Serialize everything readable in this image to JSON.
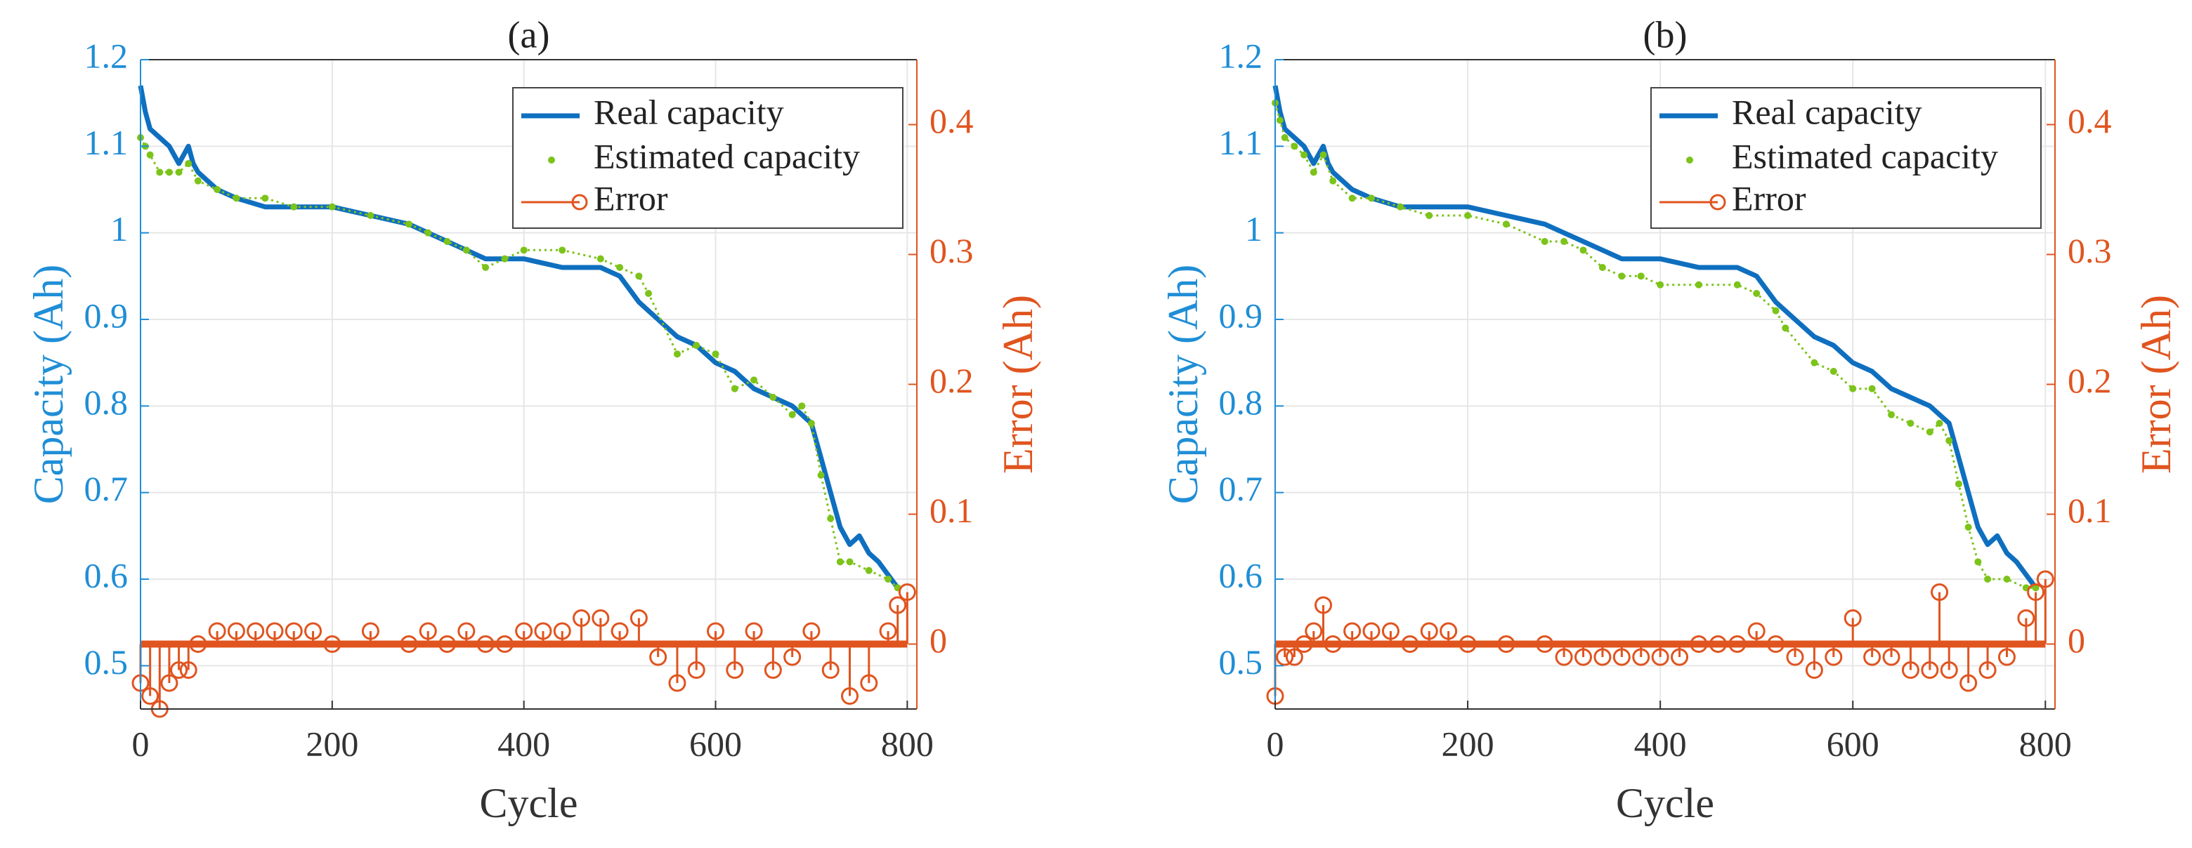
{
  "colors": {
    "capacity_axis": "#1f8ed6",
    "real_line": "#0f6fbf",
    "estimated": "#7cc31a",
    "error": "#e0541f",
    "grid": "#e6e6e6",
    "axis": "#333333"
  },
  "chart_data": [
    {
      "panel": "(a)",
      "type": "line",
      "title": "(a)",
      "xlabel": "Cycle",
      "ylabel_left": "Capacity (Ah)",
      "ylabel_right": "Error (Ah)",
      "xlim": [
        0,
        810
      ],
      "ylim_left": [
        0.45,
        1.2
      ],
      "ylim_right": [
        -0.05,
        0.45
      ],
      "xticks": [
        "0",
        "200",
        "400",
        "600",
        "800"
      ],
      "yticks_left": [
        "0.5",
        "0.6",
        "0.7",
        "0.8",
        "0.9",
        "1",
        "1.1",
        "1.2"
      ],
      "yticks_right": [
        "0",
        "0.1",
        "0.2",
        "0.3",
        "0.4"
      ],
      "legend": {
        "position": "top-right",
        "entries": [
          "Real capacity",
          "Estimated capacity",
          "Error"
        ]
      },
      "series": [
        {
          "name": "Real capacity",
          "style": "line",
          "x": [
            0,
            5,
            10,
            20,
            30,
            40,
            50,
            55,
            60,
            80,
            100,
            130,
            160,
            200,
            240,
            280,
            300,
            320,
            340,
            360,
            380,
            400,
            440,
            480,
            500,
            520,
            530,
            560,
            580,
            600,
            620,
            640,
            660,
            680,
            690,
            700,
            710,
            720,
            730,
            740,
            750,
            760,
            770,
            790
          ],
          "y": [
            1.17,
            1.14,
            1.12,
            1.11,
            1.1,
            1.08,
            1.1,
            1.08,
            1.07,
            1.05,
            1.04,
            1.03,
            1.03,
            1.03,
            1.02,
            1.01,
            1.0,
            0.99,
            0.98,
            0.97,
            0.97,
            0.97,
            0.96,
            0.96,
            0.95,
            0.92,
            0.91,
            0.88,
            0.87,
            0.85,
            0.84,
            0.82,
            0.81,
            0.8,
            0.79,
            0.78,
            0.74,
            0.7,
            0.66,
            0.64,
            0.65,
            0.63,
            0.62,
            0.59
          ]
        },
        {
          "name": "Estimated capacity",
          "style": "markers",
          "x": [
            0,
            5,
            10,
            20,
            30,
            40,
            50,
            60,
            80,
            100,
            130,
            160,
            200,
            240,
            280,
            300,
            320,
            340,
            360,
            380,
            400,
            440,
            480,
            500,
            520,
            530,
            560,
            580,
            600,
            620,
            640,
            660,
            680,
            690,
            700,
            710,
            720,
            730,
            740,
            760,
            780,
            790
          ],
          "y": [
            1.11,
            1.1,
            1.09,
            1.07,
            1.07,
            1.07,
            1.08,
            1.06,
            1.05,
            1.04,
            1.04,
            1.03,
            1.03,
            1.02,
            1.01,
            1.0,
            0.99,
            0.98,
            0.96,
            0.97,
            0.98,
            0.98,
            0.97,
            0.96,
            0.95,
            0.93,
            0.86,
            0.87,
            0.86,
            0.82,
            0.83,
            0.81,
            0.79,
            0.8,
            0.78,
            0.72,
            0.67,
            0.62,
            0.62,
            0.61,
            0.6,
            0.59
          ]
        },
        {
          "name": "Error",
          "style": "stem",
          "axis": "right",
          "x": [
            0,
            10,
            20,
            30,
            40,
            50,
            60,
            80,
            100,
            120,
            140,
            160,
            180,
            200,
            240,
            280,
            300,
            320,
            340,
            360,
            380,
            400,
            420,
            440,
            460,
            480,
            500,
            520,
            540,
            560,
            580,
            600,
            620,
            640,
            660,
            680,
            700,
            720,
            740,
            760,
            780,
            790,
            800
          ],
          "y": [
            -0.03,
            -0.04,
            -0.05,
            -0.03,
            -0.02,
            -0.02,
            0.0,
            0.01,
            0.01,
            0.01,
            0.01,
            0.01,
            0.01,
            0.0,
            0.01,
            0.0,
            0.01,
            0.0,
            0.01,
            0.0,
            0.0,
            0.01,
            0.01,
            0.01,
            0.02,
            0.02,
            0.01,
            0.02,
            -0.01,
            -0.03,
            -0.02,
            0.01,
            -0.02,
            0.01,
            -0.02,
            -0.01,
            0.01,
            -0.02,
            -0.04,
            -0.03,
            0.01,
            0.03,
            0.04
          ]
        }
      ]
    },
    {
      "panel": "(b)",
      "type": "line",
      "title": "(b)",
      "xlabel": "Cycle",
      "ylabel_left": "Capacity (Ah)",
      "ylabel_right": "Error (Ah)",
      "xlim": [
        0,
        810
      ],
      "ylim_left": [
        0.45,
        1.2
      ],
      "ylim_right": [
        -0.05,
        0.45
      ],
      "xticks": [
        "0",
        "200",
        "400",
        "600",
        "800"
      ],
      "yticks_left": [
        "0.5",
        "0.6",
        "0.7",
        "0.8",
        "0.9",
        "1",
        "1.1",
        "1.2"
      ],
      "yticks_right": [
        "0",
        "0.1",
        "0.2",
        "0.3",
        "0.4"
      ],
      "legend": {
        "position": "top-right",
        "entries": [
          "Real capacity",
          "Estimated capacity",
          "Error"
        ]
      },
      "series": [
        {
          "name": "Real capacity",
          "style": "line",
          "x": [
            0,
            5,
            10,
            20,
            30,
            40,
            50,
            55,
            60,
            80,
            100,
            130,
            160,
            200,
            240,
            280,
            300,
            320,
            340,
            360,
            380,
            400,
            440,
            480,
            500,
            520,
            530,
            560,
            580,
            600,
            620,
            640,
            660,
            680,
            690,
            700,
            710,
            720,
            730,
            740,
            750,
            760,
            770,
            790
          ],
          "y": [
            1.17,
            1.14,
            1.12,
            1.11,
            1.1,
            1.08,
            1.1,
            1.08,
            1.07,
            1.05,
            1.04,
            1.03,
            1.03,
            1.03,
            1.02,
            1.01,
            1.0,
            0.99,
            0.98,
            0.97,
            0.97,
            0.97,
            0.96,
            0.96,
            0.95,
            0.92,
            0.91,
            0.88,
            0.87,
            0.85,
            0.84,
            0.82,
            0.81,
            0.8,
            0.79,
            0.78,
            0.74,
            0.7,
            0.66,
            0.64,
            0.65,
            0.63,
            0.62,
            0.59
          ]
        },
        {
          "name": "Estimated capacity",
          "style": "markers",
          "x": [
            0,
            5,
            10,
            20,
            30,
            40,
            50,
            60,
            80,
            100,
            130,
            160,
            200,
            240,
            280,
            300,
            320,
            340,
            360,
            380,
            400,
            440,
            480,
            500,
            520,
            530,
            560,
            580,
            600,
            620,
            640,
            660,
            680,
            690,
            700,
            710,
            720,
            730,
            740,
            760,
            780,
            790
          ],
          "y": [
            1.15,
            1.13,
            1.11,
            1.1,
            1.09,
            1.07,
            1.09,
            1.06,
            1.04,
            1.04,
            1.03,
            1.02,
            1.02,
            1.01,
            0.99,
            0.99,
            0.98,
            0.96,
            0.95,
            0.95,
            0.94,
            0.94,
            0.94,
            0.93,
            0.91,
            0.89,
            0.85,
            0.84,
            0.82,
            0.82,
            0.79,
            0.78,
            0.77,
            0.78,
            0.76,
            0.71,
            0.66,
            0.62,
            0.6,
            0.6,
            0.59,
            0.59
          ]
        },
        {
          "name": "Error",
          "style": "stem",
          "axis": "right",
          "x": [
            0,
            10,
            20,
            30,
            40,
            50,
            60,
            80,
            100,
            120,
            140,
            160,
            180,
            200,
            240,
            280,
            300,
            320,
            340,
            360,
            380,
            400,
            420,
            440,
            460,
            480,
            500,
            520,
            540,
            560,
            580,
            600,
            620,
            640,
            660,
            680,
            690,
            700,
            720,
            740,
            760,
            780,
            790,
            800
          ],
          "y": [
            -0.04,
            -0.01,
            -0.01,
            0.0,
            0.01,
            0.03,
            0.0,
            0.01,
            0.01,
            0.01,
            0.0,
            0.01,
            0.01,
            0.0,
            0.0,
            0.0,
            -0.01,
            -0.01,
            -0.01,
            -0.01,
            -0.01,
            -0.01,
            -0.01,
            0.0,
            0.0,
            0.0,
            0.01,
            0.0,
            -0.01,
            -0.02,
            -0.01,
            0.02,
            -0.01,
            -0.01,
            -0.02,
            -0.02,
            0.04,
            -0.02,
            -0.03,
            -0.02,
            -0.01,
            0.02,
            0.04,
            0.05
          ]
        }
      ]
    }
  ]
}
